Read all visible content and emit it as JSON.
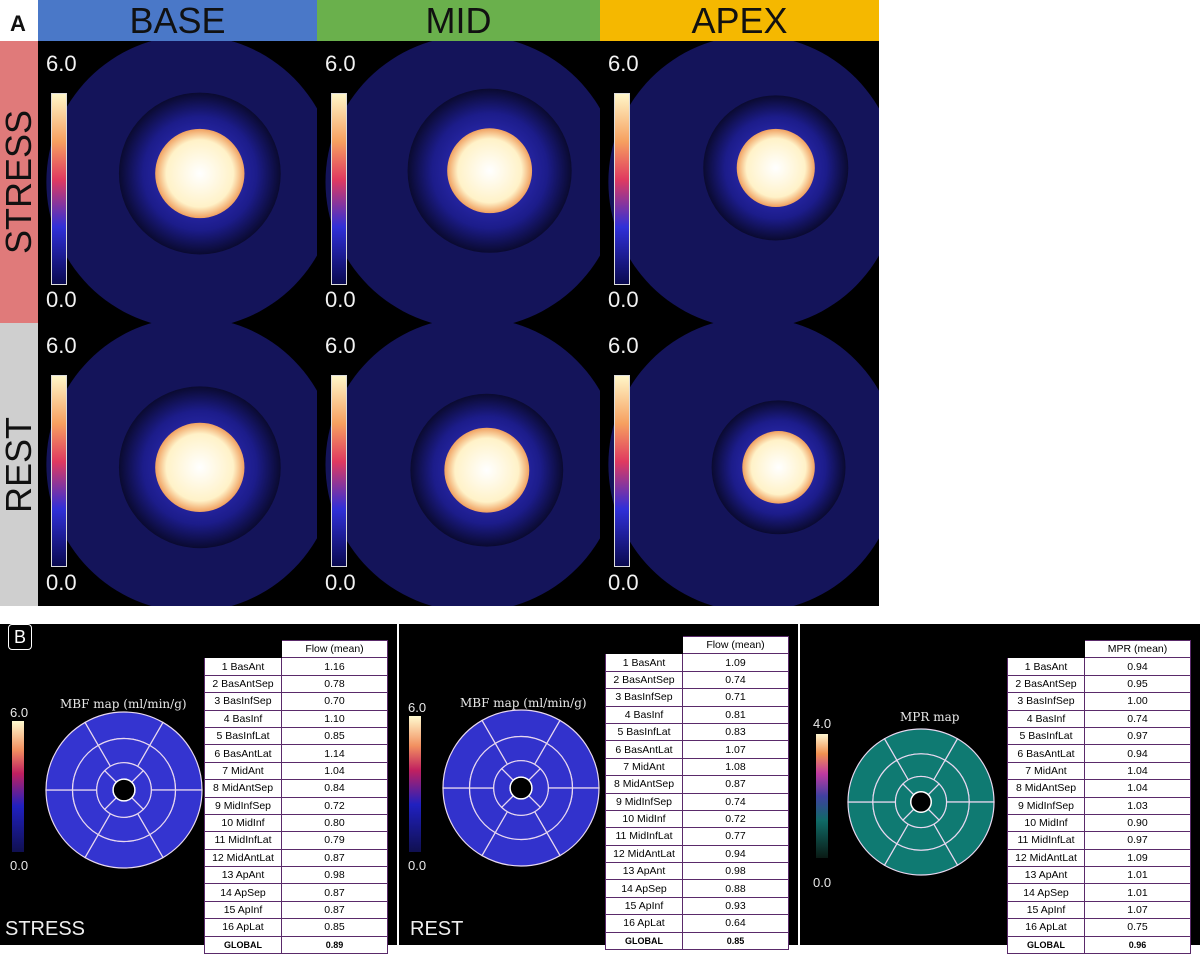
{
  "panel_a": {
    "letter": "A",
    "columns": [
      {
        "label": "BASE",
        "color": "#4a78c8"
      },
      {
        "label": "MID",
        "color": "#6ab04c"
      },
      {
        "label": "APEX",
        "color": "#f5b800"
      }
    ],
    "rows": [
      {
        "label": "STRESS",
        "color": "#e07a7a"
      },
      {
        "label": "REST",
        "color": "#cfcfcf"
      }
    ],
    "scale_max": "6.0",
    "scale_min": "0.0"
  },
  "panel_b": {
    "letter": "B",
    "stress": {
      "condition": "STRESS",
      "map_title": "MBF map (ml/min/g)",
      "scale_max": "6.0",
      "scale_min": "0.0",
      "column_header": "Flow (mean)",
      "rows": [
        {
          "segment": "1 BasAnt",
          "value": "1.16"
        },
        {
          "segment": "2 BasAntSep",
          "value": "0.78"
        },
        {
          "segment": "3 BasInfSep",
          "value": "0.70"
        },
        {
          "segment": "4 BasInf",
          "value": "1.10"
        },
        {
          "segment": "5 BasInfLat",
          "value": "0.85"
        },
        {
          "segment": "6 BasAntLat",
          "value": "1.14"
        },
        {
          "segment": "7 MidAnt",
          "value": "1.04"
        },
        {
          "segment": "8 MidAntSep",
          "value": "0.84"
        },
        {
          "segment": "9 MidInfSep",
          "value": "0.72"
        },
        {
          "segment": "10 MidInf",
          "value": "0.80"
        },
        {
          "segment": "11 MidInfLat",
          "value": "0.79"
        },
        {
          "segment": "12 MidAntLat",
          "value": "0.87"
        },
        {
          "segment": "13 ApAnt",
          "value": "0.98"
        },
        {
          "segment": "14 ApSep",
          "value": "0.87"
        },
        {
          "segment": "15 ApInf",
          "value": "0.87"
        },
        {
          "segment": "16 ApLat",
          "value": "0.85"
        }
      ],
      "global_label": "GLOBAL",
      "global_value": "0.89",
      "map_color": "#3434d0"
    },
    "rest": {
      "condition": "REST",
      "map_title": "MBF map (ml/min/g)",
      "scale_max": "6.0",
      "scale_min": "0.0",
      "column_header": "Flow (mean)",
      "rows": [
        {
          "segment": "1 BasAnt",
          "value": "1.09"
        },
        {
          "segment": "2 BasAntSep",
          "value": "0.74"
        },
        {
          "segment": "3 BasInfSep",
          "value": "0.71"
        },
        {
          "segment": "4 BasInf",
          "value": "0.81"
        },
        {
          "segment": "5 BasInfLat",
          "value": "0.83"
        },
        {
          "segment": "6 BasAntLat",
          "value": "1.07"
        },
        {
          "segment": "7 MidAnt",
          "value": "1.08"
        },
        {
          "segment": "8 MidAntSep",
          "value": "0.87"
        },
        {
          "segment": "9 MidInfSep",
          "value": "0.74"
        },
        {
          "segment": "10 MidInf",
          "value": "0.72"
        },
        {
          "segment": "11 MidInfLat",
          "value": "0.77"
        },
        {
          "segment": "12 MidAntLat",
          "value": "0.94"
        },
        {
          "segment": "13 ApAnt",
          "value": "0.98"
        },
        {
          "segment": "14 ApSep",
          "value": "0.88"
        },
        {
          "segment": "15 ApInf",
          "value": "0.93"
        },
        {
          "segment": "16 ApLat",
          "value": "0.64"
        }
      ],
      "global_label": "GLOBAL",
      "global_value": "0.85",
      "map_color": "#3232cc"
    },
    "mpr": {
      "map_title": "MPR map",
      "scale_max": "4.0",
      "scale_min": "0.0",
      "column_header": "MPR (mean)",
      "rows": [
        {
          "segment": "1 BasAnt",
          "value": "0.94"
        },
        {
          "segment": "2 BasAntSep",
          "value": "0.95"
        },
        {
          "segment": "3 BasInfSep",
          "value": "1.00"
        },
        {
          "segment": "4 BasInf",
          "value": "0.74"
        },
        {
          "segment": "5 BasInfLat",
          "value": "0.97"
        },
        {
          "segment": "6 BasAntLat",
          "value": "0.94"
        },
        {
          "segment": "7 MidAnt",
          "value": "1.04"
        },
        {
          "segment": "8 MidAntSep",
          "value": "1.04"
        },
        {
          "segment": "9 MidInfSep",
          "value": "1.03"
        },
        {
          "segment": "10 MidInf",
          "value": "0.90"
        },
        {
          "segment": "11 MidInfLat",
          "value": "0.97"
        },
        {
          "segment": "12 MidAntLat",
          "value": "1.09"
        },
        {
          "segment": "13 ApAnt",
          "value": "1.01"
        },
        {
          "segment": "14 ApSep",
          "value": "1.01"
        },
        {
          "segment": "15 ApInf",
          "value": "1.07"
        },
        {
          "segment": "16 ApLat",
          "value": "0.75"
        }
      ],
      "global_label": "GLOBAL",
      "global_value": "0.96",
      "map_color": "#0f7a72"
    }
  }
}
